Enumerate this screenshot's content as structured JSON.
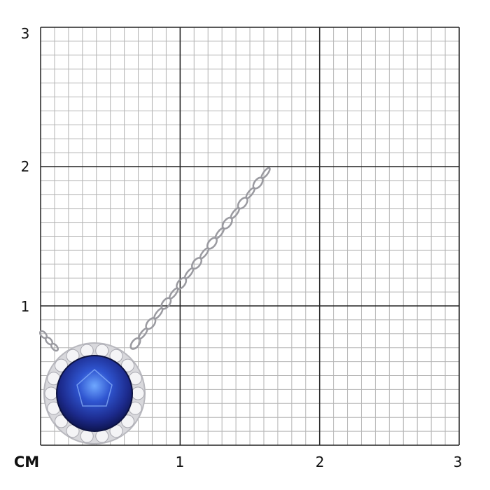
{
  "scale": {
    "unit_label": "CM",
    "x_ticks": [
      "1",
      "2",
      "3"
    ],
    "y_ticks": [
      "1",
      "2",
      "3"
    ],
    "range_cm": [
      0,
      3
    ],
    "minor_divisions_per_cm": 10
  },
  "product": {
    "type": "pendant-necklace",
    "stone_color": "#1c2a8c",
    "metal_color": "#d8d8dc"
  },
  "colors": {
    "major_grid": "#222222",
    "minor_grid": "#b5b5b5"
  }
}
